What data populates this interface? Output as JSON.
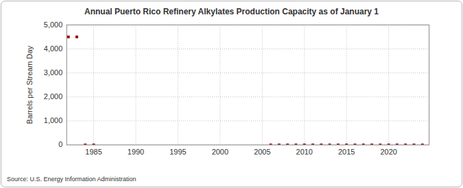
{
  "chart_data": {
    "type": "scatter",
    "title": "Annual Puerto Rico Refinery Alkylates Production Capacity as of January 1",
    "y_label": "Barrels per Stream Day",
    "source": "Source: U.S. Energy Information Administration",
    "x": [
      1982,
      1983,
      1984,
      1985,
      2006,
      2007,
      2008,
      2009,
      2010,
      2011,
      2012,
      2013,
      2014,
      2015,
      2016,
      2017,
      2018,
      2019,
      2020,
      2021,
      2022,
      2023,
      2024
    ],
    "values": [
      4500,
      4500,
      0,
      0,
      0,
      0,
      0,
      0,
      0,
      0,
      0,
      0,
      0,
      0,
      0,
      0,
      0,
      0,
      0,
      0,
      0,
      0,
      0
    ],
    "color": "#990000",
    "marker": "square",
    "xlim": [
      1981.8,
      2024.8
    ],
    "xticks": [
      1985,
      1990,
      1995,
      2000,
      2005,
      2010,
      2015,
      2020
    ],
    "ylim": [
      0,
      5000
    ],
    "yticks": [
      0,
      {
        "value": 1000,
        "label": "1,000"
      },
      {
        "value": 2000,
        "label": "2,000"
      },
      {
        "value": 3000,
        "label": "3,000"
      },
      {
        "value": 4000,
        "label": "4,000"
      },
      {
        "value": 5000,
        "label": "5,000"
      }
    ],
    "grid": true
  }
}
